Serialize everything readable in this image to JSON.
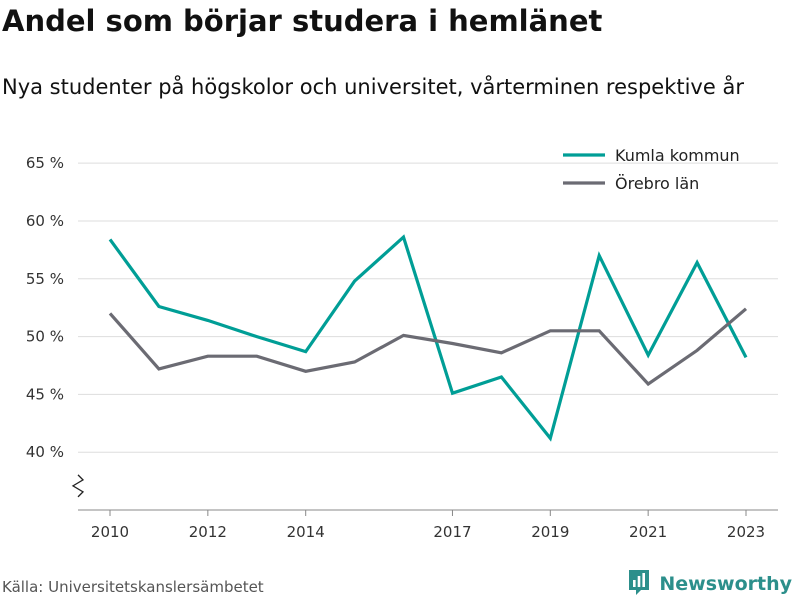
{
  "page": {
    "title": "Andel som börjar studera i hemlänet",
    "subtitle": "Nya studenter på högskolor och universitet, vårterminen respektive år",
    "source": "Källa: Universitetskanslersämbetet",
    "brand": "Newsworthy"
  },
  "colors": {
    "kumla": "#009e96",
    "orebro": "#6b6b73",
    "grid": "#dddddd",
    "axis": "#888888",
    "brand": "#2c8f8b"
  },
  "chart_data": {
    "type": "line",
    "title": "Andel som börjar studera i hemlänet",
    "subtitle": "Nya studenter på högskolor och universitet, vårterminen respektive år",
    "xlabel": "",
    "ylabel": "",
    "xlim": [
      2010,
      2023
    ],
    "ylim": [
      35,
      67
    ],
    "x_ticks": [
      2010,
      2012,
      2014,
      2017,
      2019,
      2021,
      2023
    ],
    "y_ticks": [
      {
        "value": 40,
        "label": "40 %"
      },
      {
        "value": 45,
        "label": "45 %"
      },
      {
        "value": 50,
        "label": "50 %"
      },
      {
        "value": 55,
        "label": "55 %"
      },
      {
        "value": 60,
        "label": "60 %"
      },
      {
        "value": 65,
        "label": "65 %"
      }
    ],
    "axis_break": true,
    "grid": true,
    "legend_position": "top-right",
    "x": [
      2010,
      2011,
      2012,
      2013,
      2014,
      2015,
      2016,
      2017,
      2018,
      2019,
      2020,
      2021,
      2022,
      2023
    ],
    "series": [
      {
        "name": "Kumla kommun",
        "color": "#009e96",
        "values": [
          58.4,
          52.6,
          51.4,
          50.0,
          48.7,
          54.8,
          58.6,
          45.1,
          46.5,
          41.2,
          57.0,
          48.4,
          56.4,
          48.2
        ]
      },
      {
        "name": "Örebro län",
        "color": "#6b6b73",
        "values": [
          52.0,
          47.2,
          48.3,
          48.3,
          47.0,
          47.8,
          50.1,
          49.4,
          48.6,
          50.5,
          50.5,
          45.9,
          48.8,
          52.4
        ]
      }
    ]
  }
}
